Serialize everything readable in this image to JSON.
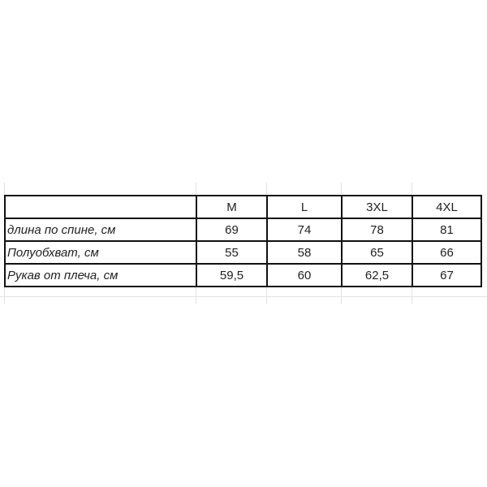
{
  "table": {
    "headers": [
      "",
      "M",
      "L",
      "3XL",
      "4XL"
    ],
    "rows": [
      {
        "label": "длина по спине, см",
        "values": [
          "69",
          "74",
          "78",
          "81"
        ]
      },
      {
        "label": "Полуобхват, см",
        "values": [
          "55",
          "58",
          "65",
          "66"
        ]
      },
      {
        "label": "Рукав от плеча, см",
        "values": [
          "59,5",
          "60",
          "62,5",
          "67"
        ]
      }
    ]
  }
}
